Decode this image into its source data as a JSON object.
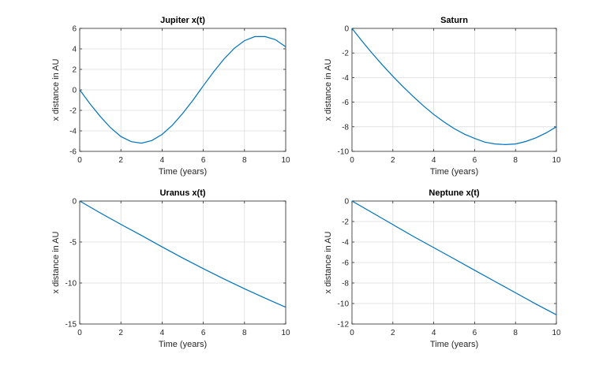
{
  "chart_data": [
    {
      "type": "line",
      "title": "Jupiter x(t)",
      "xlabel": "Time (years)",
      "ylabel": "x distance in AU",
      "xlim": [
        0,
        10
      ],
      "ylim": [
        -6,
        6
      ],
      "xticks": [
        0,
        2,
        4,
        6,
        8,
        10
      ],
      "yticks": [
        -6,
        -4,
        -2,
        0,
        2,
        4,
        6
      ],
      "grid": true,
      "line_color": "#0072bd",
      "series": [
        {
          "x": [
            0,
            0.5,
            1,
            1.5,
            2,
            2.5,
            3,
            3.5,
            4,
            4.5,
            5,
            5.5,
            6,
            6.5,
            7,
            7.5,
            8,
            8.5,
            9,
            9.5,
            10
          ],
          "y": [
            0,
            -1.35,
            -2.6,
            -3.7,
            -4.55,
            -5.05,
            -5.2,
            -4.95,
            -4.35,
            -3.45,
            -2.3,
            -1.0,
            0.4,
            1.75,
            3.0,
            4.05,
            4.8,
            5.2,
            5.2,
            4.9,
            4.2
          ]
        }
      ]
    },
    {
      "type": "line",
      "title": "Saturn",
      "xlabel": "Time (years)",
      "ylabel": "x distance in AU",
      "xlim": [
        0,
        10
      ],
      "ylim": [
        -10,
        0
      ],
      "xticks": [
        0,
        2,
        4,
        6,
        8,
        10
      ],
      "yticks": [
        -10,
        -8,
        -6,
        -4,
        -2,
        0
      ],
      "grid": true,
      "line_color": "#0072bd",
      "series": [
        {
          "x": [
            0,
            0.5,
            1,
            1.5,
            2,
            2.5,
            3,
            3.5,
            4,
            4.5,
            5,
            5.5,
            6,
            6.5,
            7,
            7.5,
            8,
            8.5,
            9,
            9.5,
            10
          ],
          "y": [
            0,
            -1.05,
            -2.05,
            -3.0,
            -3.9,
            -4.75,
            -5.55,
            -6.3,
            -7.0,
            -7.6,
            -8.15,
            -8.6,
            -8.95,
            -9.25,
            -9.4,
            -9.45,
            -9.4,
            -9.2,
            -8.9,
            -8.5,
            -8.0
          ]
        }
      ]
    },
    {
      "type": "line",
      "title": "Uranus x(t)",
      "xlabel": "Time (years)",
      "ylabel": "x distance in AU",
      "xlim": [
        0,
        10
      ],
      "ylim": [
        -15,
        0
      ],
      "xticks": [
        0,
        2,
        4,
        6,
        8,
        10
      ],
      "yticks": [
        -15,
        -10,
        -5,
        0
      ],
      "grid": true,
      "line_color": "#0072bd",
      "series": [
        {
          "x": [
            0,
            1,
            2,
            3,
            4,
            5,
            6,
            7,
            8,
            9,
            10
          ],
          "y": [
            0,
            -1.45,
            -2.85,
            -4.2,
            -5.6,
            -6.95,
            -8.25,
            -9.5,
            -10.7,
            -11.85,
            -12.95
          ]
        }
      ]
    },
    {
      "type": "line",
      "title": "Neptune x(t)",
      "xlabel": "Time (years)",
      "ylabel": "x distance in AU",
      "xlim": [
        0,
        10
      ],
      "ylim": [
        -12,
        0
      ],
      "xticks": [
        0,
        2,
        4,
        6,
        8,
        10
      ],
      "yticks": [
        -12,
        -10,
        -8,
        -6,
        -4,
        -2,
        0
      ],
      "grid": true,
      "line_color": "#0072bd",
      "series": [
        {
          "x": [
            0,
            1,
            2,
            3,
            4,
            5,
            6,
            7,
            8,
            9,
            10
          ],
          "y": [
            0,
            -1.15,
            -2.3,
            -3.45,
            -4.55,
            -5.65,
            -6.75,
            -7.85,
            -8.95,
            -10.05,
            -11.1
          ]
        }
      ]
    }
  ]
}
